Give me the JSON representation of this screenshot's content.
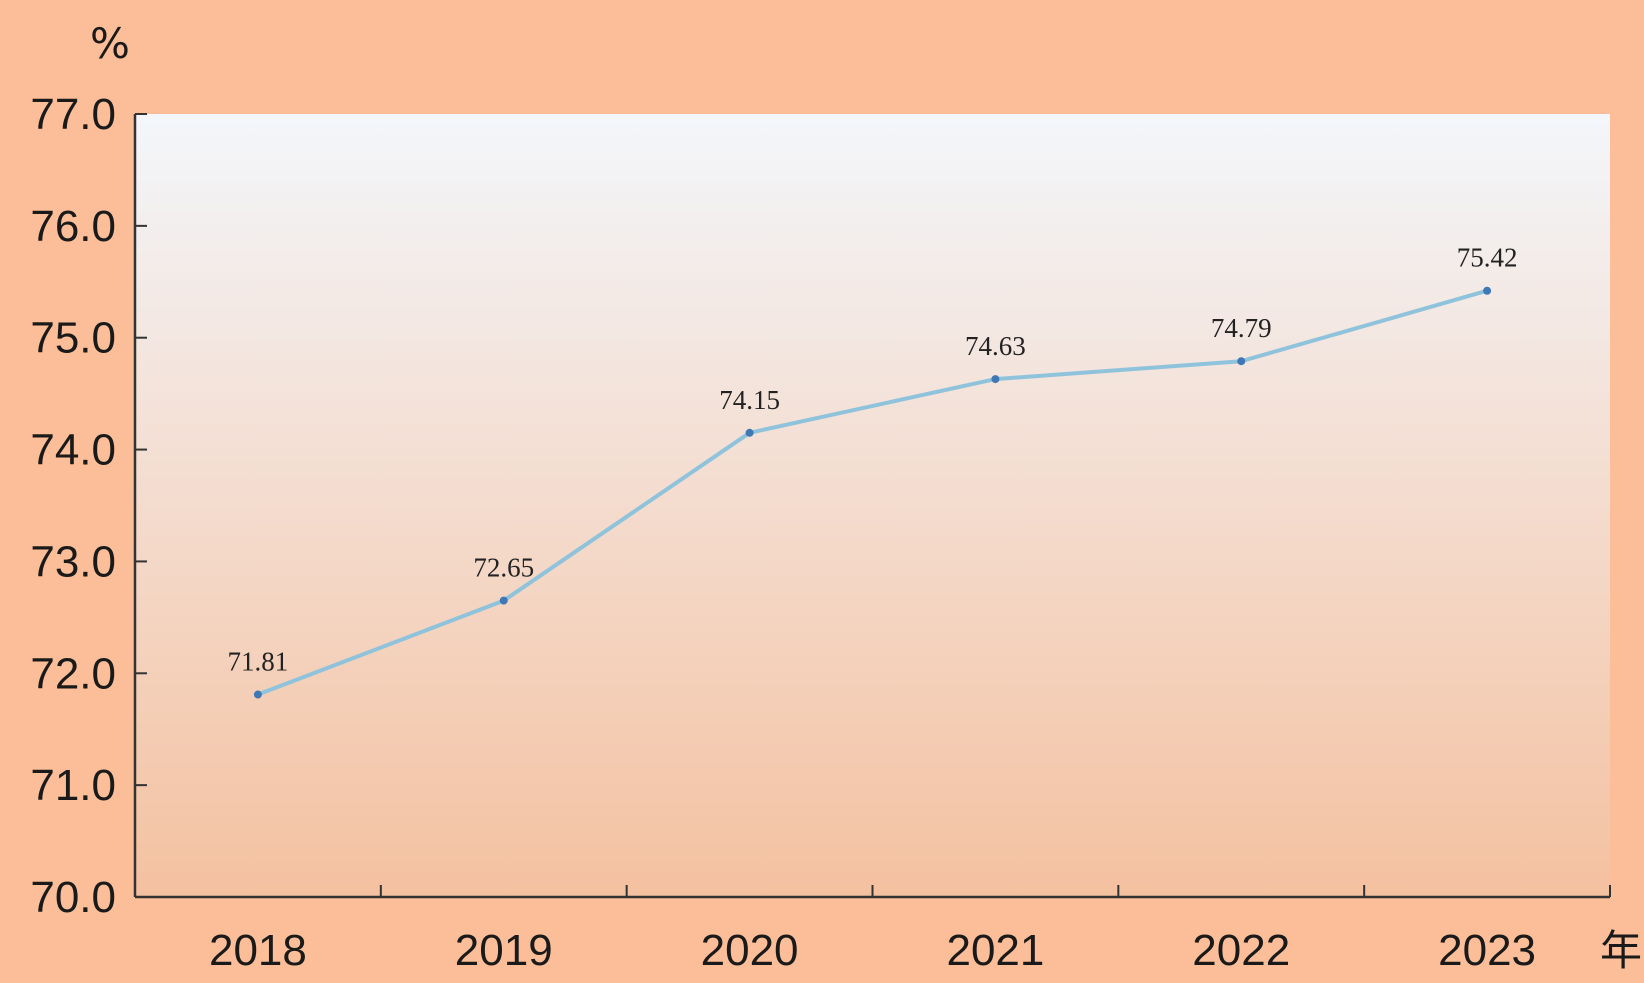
{
  "chart_data": {
    "type": "line",
    "title": "",
    "ylabel": "%",
    "xlabel": "年",
    "categories": [
      "2018",
      "2019",
      "2020",
      "2021",
      "2022",
      "2023"
    ],
    "series": [
      {
        "values": [
          71.81,
          72.65,
          74.15,
          74.63,
          74.79,
          75.42
        ],
        "data_labels": [
          "71.81",
          "72.65",
          "74.15",
          "74.63",
          "74.79",
          "75.42"
        ]
      }
    ],
    "ylim": [
      70.0,
      77.0
    ],
    "yticks": [
      "70.0",
      "71.0",
      "72.0",
      "73.0",
      "74.0",
      "75.0",
      "76.0",
      "77.0"
    ],
    "grid": false,
    "legend": "none",
    "colors": {
      "page_background": "#fbbe98",
      "plot_top": "#f3f6fb",
      "plot_bottom": "#f4c1a0",
      "line": "#8fc3dc",
      "marker": "#3f78b5",
      "axis": "#333333"
    }
  }
}
